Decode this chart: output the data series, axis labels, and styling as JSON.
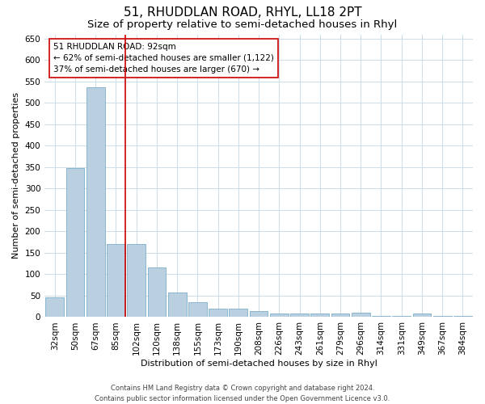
{
  "title": "51, RHUDDLAN ROAD, RHYL, LL18 2PT",
  "subtitle": "Size of property relative to semi-detached houses in Rhyl",
  "xlabel": "Distribution of semi-detached houses by size in Rhyl",
  "ylabel": "Number of semi-detached properties",
  "footer_line1": "Contains HM Land Registry data © Crown copyright and database right 2024.",
  "footer_line2": "Contains public sector information licensed under the Open Government Licence v3.0.",
  "annotation_title": "51 RHUDDLAN ROAD: 92sqm",
  "annotation_line1": "← 62% of semi-detached houses are smaller (1,122)",
  "annotation_line2": "37% of semi-detached houses are larger (670) →",
  "categories": [
    "32sqm",
    "50sqm",
    "67sqm",
    "85sqm",
    "102sqm",
    "120sqm",
    "138sqm",
    "155sqm",
    "173sqm",
    "190sqm",
    "208sqm",
    "226sqm",
    "243sqm",
    "261sqm",
    "279sqm",
    "296sqm",
    "314sqm",
    "331sqm",
    "349sqm",
    "367sqm",
    "384sqm"
  ],
  "values": [
    46,
    347,
    537,
    170,
    170,
    115,
    58,
    35,
    20,
    20,
    15,
    8,
    8,
    8,
    8,
    10,
    2,
    2,
    8,
    2,
    2
  ],
  "bar_color": "#bad0e0",
  "bar_edge_color": "#7aafc8",
  "marker_line_color": "#cc0000",
  "marker_bin_index": 3,
  "ylim": [
    0,
    660
  ],
  "yticks": [
    0,
    50,
    100,
    150,
    200,
    250,
    300,
    350,
    400,
    450,
    500,
    550,
    600,
    650
  ],
  "bg_color": "#ffffff",
  "grid_color": "#ccdde8",
  "annotation_box_color": "#cc0000",
  "title_fontsize": 11,
  "subtitle_fontsize": 9.5,
  "axis_label_fontsize": 8,
  "tick_fontsize": 7.5,
  "annotation_fontsize": 7.5,
  "footer_fontsize": 6
}
